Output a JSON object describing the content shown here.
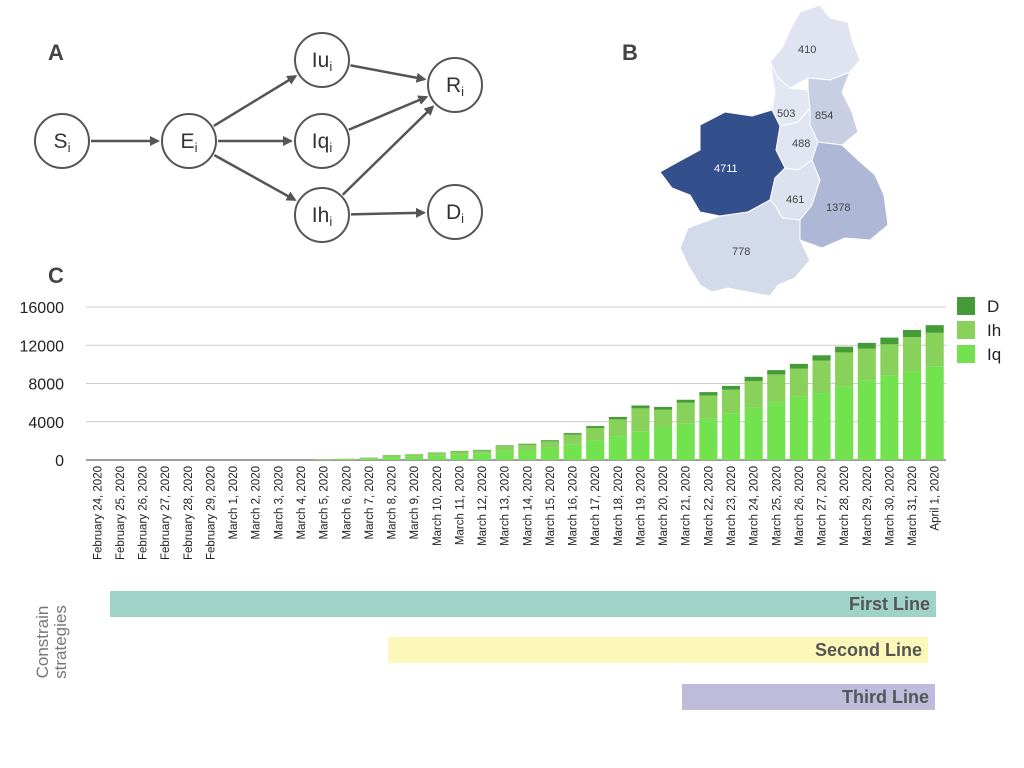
{
  "panels": {
    "a": "A",
    "b": "B",
    "c": "C"
  },
  "diagram": {
    "nodes": [
      {
        "id": "S",
        "base": "S",
        "sub": "i"
      },
      {
        "id": "E",
        "base": "E",
        "sub": "i"
      },
      {
        "id": "Iu",
        "base": "Iu",
        "sub": "i"
      },
      {
        "id": "Iq",
        "base": "Iq",
        "sub": "i"
      },
      {
        "id": "Ih",
        "base": "Ih",
        "sub": "i"
      },
      {
        "id": "R",
        "base": "R",
        "sub": "i"
      },
      {
        "id": "D",
        "base": "D",
        "sub": "i"
      }
    ],
    "edges": [
      [
        "S",
        "E"
      ],
      [
        "E",
        "Iu"
      ],
      [
        "E",
        "Iq"
      ],
      [
        "E",
        "Ih"
      ],
      [
        "Iu",
        "R"
      ],
      [
        "Iq",
        "R"
      ],
      [
        "Ih",
        "R"
      ],
      [
        "Ih",
        "D"
      ]
    ]
  },
  "map": {
    "regions": [
      {
        "id": "north",
        "value": "410",
        "color": "#dfe4f0"
      },
      {
        "id": "north-west-small",
        "value": "503",
        "color": "#e3e7f2"
      },
      {
        "id": "north-east",
        "value": "854",
        "color": "#c8cfe3"
      },
      {
        "id": "center",
        "value": "488",
        "color": "#e0e5f1"
      },
      {
        "id": "west-large",
        "value": "4711",
        "color": "#34508c"
      },
      {
        "id": "center-south",
        "value": "461",
        "color": "#dde2ef"
      },
      {
        "id": "east",
        "value": "1378",
        "color": "#aeb8d6"
      },
      {
        "id": "south",
        "value": "778",
        "color": "#d3daea"
      }
    ]
  },
  "chart_data": {
    "type": "bar",
    "stacked": true,
    "categories": [
      "February 24, 2020",
      "February 25, 2020",
      "February 26, 2020",
      "February 27, 2020",
      "February 28, 2020",
      "February 29, 2020",
      "March 1, 2020",
      "March 2, 2020",
      "March 3, 2020",
      "March 4, 2020",
      "March 5, 2020",
      "March 6, 2020",
      "March 7, 2020",
      "March 8, 2020",
      "March 9, 2020",
      "March 10, 2020",
      "March 11, 2020",
      "March 12, 2020",
      "March 13, 2020",
      "March 14, 2020",
      "March 15, 2020",
      "March 16, 2020",
      "March 17, 2020",
      "March 18, 2020",
      "March 19, 2020",
      "March 20, 2020",
      "March 21, 2020",
      "March 22, 2020",
      "March 23, 2020",
      "March 24, 2020",
      "March 25, 2020",
      "March 26, 2020",
      "March 27, 2020",
      "March 28, 2020",
      "March 29, 2020",
      "March 30, 2020",
      "March 31, 2020",
      "April 1, 2020"
    ],
    "series": [
      {
        "name": "Iq",
        "color": "#72e34f",
        "values": [
          0,
          0,
          0,
          0,
          0,
          0,
          0,
          0,
          0,
          0,
          40,
          80,
          150,
          300,
          350,
          450,
          550,
          650,
          950,
          1050,
          1300,
          1600,
          2000,
          2500,
          3000,
          3400,
          3800,
          4300,
          4900,
          5500,
          6000,
          6600,
          7000,
          7700,
          8300,
          8800,
          9300,
          9800
        ]
      },
      {
        "name": "Ih",
        "color": "#88d15a",
        "values": [
          0,
          0,
          0,
          0,
          0,
          0,
          0,
          0,
          0,
          0,
          30,
          60,
          100,
          200,
          220,
          300,
          350,
          350,
          500,
          550,
          650,
          1050,
          1350,
          1750,
          2400,
          1850,
          2200,
          2450,
          2450,
          2750,
          2950,
          2950,
          3400,
          3550,
          3350,
          3300,
          3550,
          3500
        ]
      },
      {
        "name": "D",
        "color": "#449b38",
        "values": [
          0,
          0,
          0,
          0,
          0,
          0,
          0,
          0,
          0,
          0,
          0,
          0,
          10,
          20,
          30,
          40,
          50,
          60,
          80,
          100,
          120,
          160,
          200,
          250,
          300,
          300,
          300,
          350,
          400,
          450,
          450,
          500,
          550,
          600,
          600,
          700,
          750,
          800
        ]
      }
    ],
    "y_ticks": [
      "0",
      "4000",
      "8000",
      "12000",
      "16000"
    ],
    "ylim": [
      0,
      16000
    ],
    "grid": true,
    "legend": "top-right"
  },
  "strategies": {
    "axis_label_line1": "Constrain",
    "axis_label_line2": "strategies",
    "first": "First Line",
    "second": "Second Line",
    "third": "Third Line"
  }
}
